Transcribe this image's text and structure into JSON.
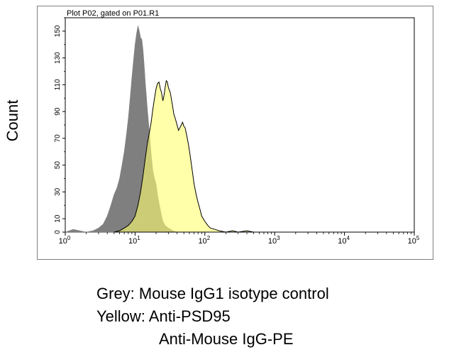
{
  "chart_data": {
    "type": "area",
    "title": "Plot P02, gated on P01.R1",
    "ylabel": "Count",
    "xlabel": "",
    "x_scale": "log",
    "xlim": [
      1,
      100000
    ],
    "ylim": [
      0,
      160
    ],
    "x_ticks": [
      {
        "value": 1,
        "base": "10",
        "exp": "0"
      },
      {
        "value": 10,
        "base": "10",
        "exp": "1"
      },
      {
        "value": 100,
        "base": "10",
        "exp": "2"
      },
      {
        "value": 1000,
        "base": "10",
        "exp": "3"
      },
      {
        "value": 10000,
        "base": "10",
        "exp": "4"
      },
      {
        "value": 100000,
        "base": "10",
        "exp": "5"
      }
    ],
    "y_ticks": [
      0,
      10,
      30,
      50,
      70,
      90,
      110,
      130,
      150
    ],
    "series": [
      {
        "color": "#7f7f7f",
        "points": [
          [
            1,
            0
          ],
          [
            1.3,
            2
          ],
          [
            1.6,
            1
          ],
          [
            2,
            0
          ],
          [
            2.5,
            1
          ],
          [
            3,
            3
          ],
          [
            3.5,
            6
          ],
          [
            4,
            12
          ],
          [
            4.5,
            20
          ],
          [
            5,
            28
          ],
          [
            5.5,
            33
          ],
          [
            6,
            40
          ],
          [
            6.5,
            50
          ],
          [
            7,
            60
          ],
          [
            7.5,
            72
          ],
          [
            8,
            85
          ],
          [
            8.5,
            100
          ],
          [
            9,
            115
          ],
          [
            9.5,
            128
          ],
          [
            10,
            140
          ],
          [
            10.5,
            148
          ],
          [
            11,
            154
          ],
          [
            11.5,
            150
          ],
          [
            12,
            145
          ],
          [
            12.5,
            144
          ],
          [
            13,
            136
          ],
          [
            13.5,
            125
          ],
          [
            14,
            112
          ],
          [
            15,
            92
          ],
          [
            16,
            75
          ],
          [
            17,
            58
          ],
          [
            18,
            46
          ],
          [
            19,
            40
          ],
          [
            20,
            36
          ],
          [
            21,
            28
          ],
          [
            22,
            22
          ],
          [
            23,
            17
          ],
          [
            24,
            12
          ],
          [
            25,
            8
          ],
          [
            27,
            5
          ],
          [
            30,
            3
          ],
          [
            35,
            1
          ],
          [
            40,
            0
          ],
          [
            50,
            0
          ]
        ]
      },
      {
        "color": "#ffff70",
        "points": [
          [
            5,
            0
          ],
          [
            6,
            1
          ],
          [
            7,
            3
          ],
          [
            8,
            5
          ],
          [
            9,
            8
          ],
          [
            10,
            12
          ],
          [
            11,
            20
          ],
          [
            12,
            30
          ],
          [
            13,
            42
          ],
          [
            14,
            55
          ],
          [
            15,
            66
          ],
          [
            16,
            74
          ],
          [
            17,
            82
          ],
          [
            18,
            92
          ],
          [
            19,
            100
          ],
          [
            20,
            107
          ],
          [
            21,
            111
          ],
          [
            22,
            112
          ],
          [
            23,
            107
          ],
          [
            24,
            104
          ],
          [
            25,
            98
          ],
          [
            26,
            102
          ],
          [
            27,
            108
          ],
          [
            28,
            113
          ],
          [
            29,
            112
          ],
          [
            30,
            108
          ],
          [
            32,
            104
          ],
          [
            34,
            96
          ],
          [
            36,
            88
          ],
          [
            38,
            84
          ],
          [
            40,
            80
          ],
          [
            42,
            76
          ],
          [
            44,
            78
          ],
          [
            46,
            80
          ],
          [
            48,
            82
          ],
          [
            50,
            79
          ],
          [
            52,
            78
          ],
          [
            55,
            72
          ],
          [
            58,
            66
          ],
          [
            62,
            56
          ],
          [
            66,
            46
          ],
          [
            70,
            36
          ],
          [
            75,
            28
          ],
          [
            80,
            22
          ],
          [
            85,
            17
          ],
          [
            90,
            12
          ],
          [
            100,
            8
          ],
          [
            110,
            5
          ],
          [
            120,
            3
          ],
          [
            140,
            2
          ],
          [
            160,
            1
          ],
          [
            200,
            0
          ],
          [
            250,
            1
          ],
          [
            300,
            0
          ],
          [
            400,
            1
          ],
          [
            500,
            0
          ],
          [
            700,
            0
          ]
        ]
      }
    ]
  },
  "caption": {
    "line1": "Grey: Mouse IgG1 isotype control",
    "line2": "Yellow: Anti-PSD95",
    "line3": "Anti-Mouse IgG-PE"
  }
}
